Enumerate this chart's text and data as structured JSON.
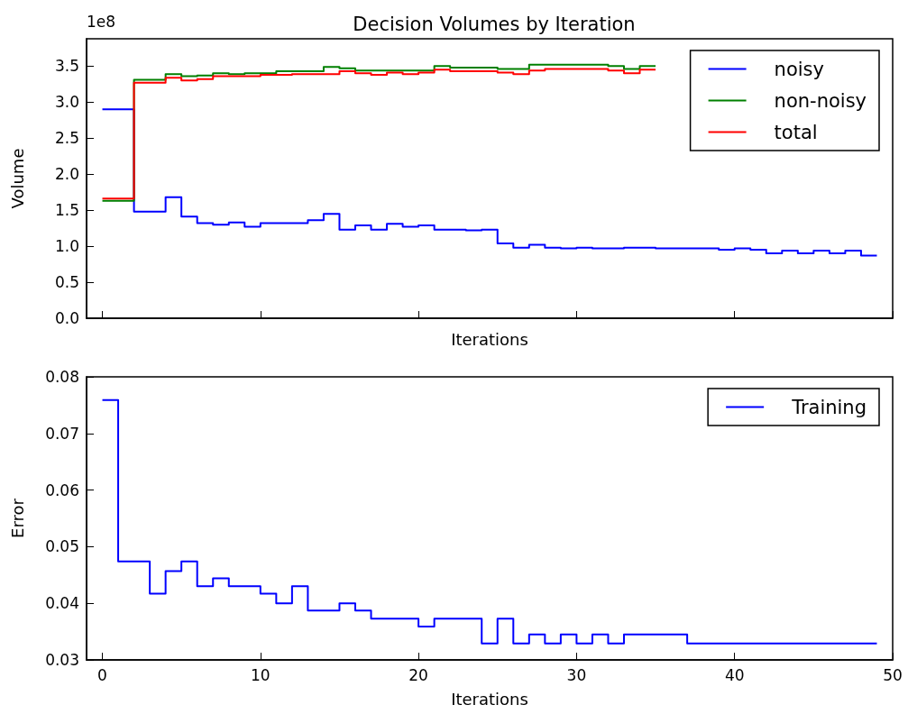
{
  "chart_data": [
    {
      "type": "step",
      "title": "Decision Volumes by Iteration",
      "xlabel": "Iterations",
      "ylabel": "Volume",
      "annotations": [
        "1e8"
      ],
      "x": [
        0,
        1,
        2,
        3,
        4,
        5,
        6,
        7,
        8,
        9,
        10,
        11,
        12,
        13,
        14,
        15,
        16,
        17,
        18,
        19,
        20,
        21,
        22,
        23,
        24,
        25,
        26,
        27,
        28,
        29,
        30,
        31,
        32,
        33,
        34,
        35,
        36,
        37,
        38,
        39,
        40,
        41,
        42,
        43,
        44,
        45,
        46,
        47,
        48,
        49
      ],
      "xlim": [
        -1,
        50
      ],
      "xticks": [
        0,
        10,
        20,
        30,
        40,
        50
      ],
      "ylim": [
        0,
        3.88
      ],
      "yticks": [
        {
          "value": 0,
          "label": "0.0"
        },
        0.5,
        {
          "value": 1,
          "label": "1.0"
        },
        1.5,
        {
          "value": 2,
          "label": "2.0"
        },
        2.5,
        {
          "value": 3,
          "label": "3.0"
        },
        3.5
      ],
      "tick_labels": "y",
      "grid": false,
      "legend": "top right",
      "series": [
        {
          "name": "noisy",
          "color": "#0000ff",
          "values": [
            2.9,
            2.9,
            2.9,
            1.48,
            1.48,
            1.68,
            1.41,
            1.32,
            1.3,
            1.33,
            1.27,
            1.32,
            1.32,
            1.32,
            1.36,
            1.45,
            1.23,
            1.29,
            1.23,
            1.31,
            1.27,
            1.29,
            1.23,
            1.23,
            1.22,
            1.23,
            1.04,
            0.98,
            1.02,
            0.98,
            0.97,
            0.98,
            0.97,
            0.97,
            0.98,
            0.98,
            0.97,
            0.97,
            0.97,
            0.97,
            0.95,
            0.97,
            0.95,
            0.9,
            0.94,
            0.9,
            0.94,
            0.9,
            0.94,
            0.87
          ]
        },
        {
          "name": "non-noisy",
          "color": "#008000",
          "values": [
            1.63,
            1.63,
            1.63,
            3.31,
            3.31,
            3.39,
            3.36,
            3.37,
            3.4,
            3.39,
            3.4,
            3.4,
            3.43,
            3.43,
            3.43,
            3.49,
            3.47,
            3.44,
            3.44,
            3.44,
            3.44,
            3.44,
            3.5,
            3.48,
            3.48,
            3.48,
            3.46,
            3.46,
            3.52,
            3.52,
            3.52,
            3.52,
            3.52,
            3.5,
            3.46,
            3.5,
            null,
            null,
            null,
            null,
            null,
            null,
            null,
            null,
            null,
            null,
            null,
            null,
            null,
            null
          ]
        },
        {
          "name": "total",
          "color": "#ff0000",
          "values": [
            1.66,
            1.66,
            1.66,
            3.27,
            3.27,
            3.34,
            3.3,
            3.32,
            3.36,
            3.36,
            3.36,
            3.38,
            3.38,
            3.39,
            3.39,
            3.39,
            3.43,
            3.4,
            3.38,
            3.41,
            3.39,
            3.41,
            3.45,
            3.43,
            3.43,
            3.43,
            3.41,
            3.39,
            3.44,
            3.46,
            3.46,
            3.46,
            3.46,
            3.44,
            3.4,
            3.45,
            null,
            null,
            null,
            null,
            null,
            null,
            null,
            null,
            null,
            null,
            null,
            null,
            null,
            null
          ]
        }
      ]
    },
    {
      "type": "step",
      "xlabel": "Iterations",
      "ylabel": "Error",
      "x": [
        0,
        1,
        2,
        3,
        4,
        5,
        6,
        7,
        8,
        9,
        10,
        11,
        12,
        13,
        14,
        15,
        16,
        17,
        18,
        19,
        20,
        21,
        22,
        23,
        24,
        25,
        26,
        27,
        28,
        29,
        30,
        31,
        32,
        33,
        34,
        35,
        36,
        37,
        38,
        39,
        40,
        41,
        42,
        43,
        44,
        45,
        46,
        47,
        48,
        49
      ],
      "xlim": [
        -1,
        50
      ],
      "xticks": [
        0,
        10,
        20,
        30,
        40,
        50
      ],
      "ylim": [
        0.03,
        0.08
      ],
      "yticks": [
        0.03,
        0.04,
        0.05,
        0.06,
        0.07,
        0.08
      ],
      "grid": false,
      "legend": "top right",
      "series": [
        {
          "name": "Training",
          "color": "#0000ff",
          "values": [
            0.0759,
            0.0759,
            0.0474,
            0.0474,
            0.0417,
            0.0457,
            0.0474,
            0.043,
            0.0444,
            0.043,
            0.043,
            0.0417,
            0.04,
            0.043,
            0.0387,
            0.0387,
            0.04,
            0.0387,
            0.0373,
            0.0373,
            0.0373,
            0.0359,
            0.0373,
            0.0373,
            0.0373,
            0.0329,
            0.0373,
            0.0329,
            0.0345,
            0.0329,
            0.0345,
            0.0329,
            0.0345,
            0.0329,
            0.0345,
            0.0345,
            0.0345,
            0.0345,
            0.0329,
            0.0329,
            0.0329,
            0.0329,
            0.0329,
            0.0329,
            0.0329,
            0.0329,
            0.0329,
            0.0329,
            0.0329,
            0.0329
          ]
        }
      ]
    }
  ]
}
